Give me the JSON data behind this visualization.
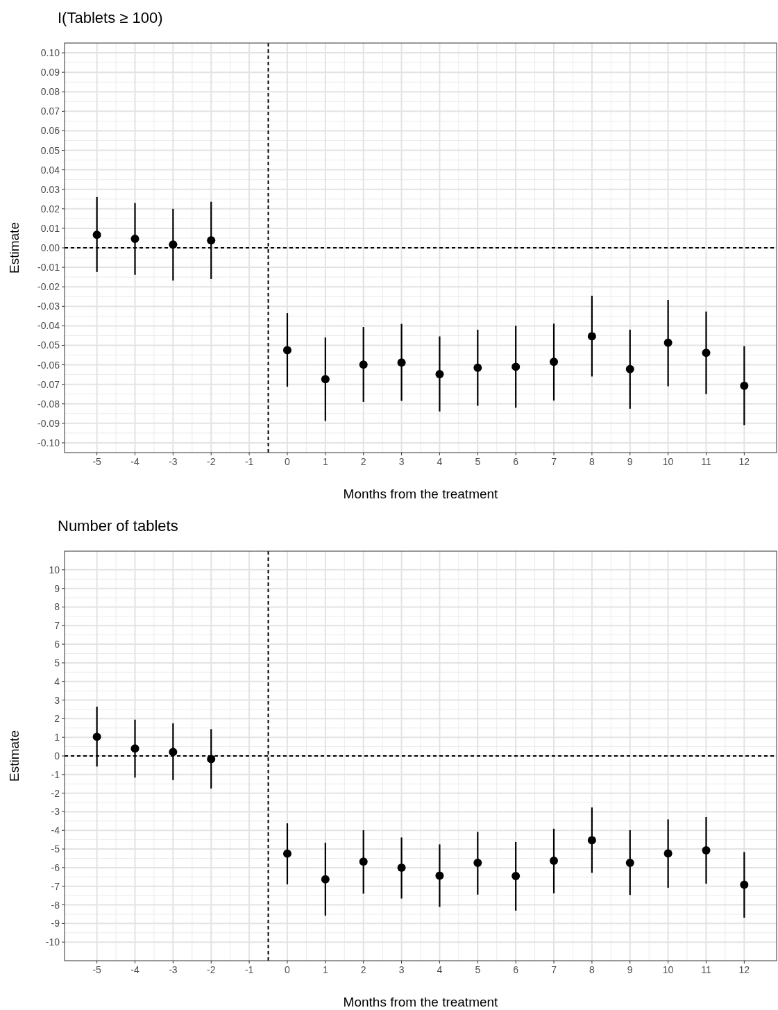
{
  "chart_data": [
    {
      "type": "scatter",
      "title": "I(Tablets ≥ 100)",
      "xlabel": "Months from the treatment",
      "ylabel": "Estimate",
      "x": [
        -5,
        -4,
        -3,
        -2,
        0,
        1,
        2,
        3,
        4,
        5,
        6,
        7,
        8,
        9,
        10,
        11,
        12
      ],
      "series": [
        {
          "color": "#000000",
          "values": [
            0.0067,
            0.0046,
            0.0017,
            0.0038,
            -0.0525,
            -0.0674,
            -0.0599,
            -0.0588,
            -0.0648,
            -0.0615,
            -0.061,
            -0.0585,
            -0.0454,
            -0.0622,
            -0.0487,
            -0.0538,
            -0.0707
          ],
          "errors": [
            [
              -0.0124,
              0.026
            ],
            [
              -0.0138,
              0.023
            ],
            [
              -0.0168,
              0.02
            ],
            [
              -0.016,
              0.0236
            ],
            [
              -0.0712,
              -0.0335
            ],
            [
              -0.0888,
              -0.046
            ],
            [
              -0.079,
              -0.0406
            ],
            [
              -0.0785,
              -0.039
            ],
            [
              -0.0839,
              -0.0454
            ],
            [
              -0.081,
              -0.042
            ],
            [
              -0.082,
              -0.04
            ],
            [
              -0.0783,
              -0.0389
            ],
            [
              -0.066,
              -0.0246
            ],
            [
              -0.0825,
              -0.042
            ],
            [
              -0.071,
              -0.0267
            ],
            [
              -0.075,
              -0.0327
            ],
            [
              -0.0909,
              -0.0504
            ]
          ]
        }
      ],
      "xlim": [
        -5.85,
        12.85
      ],
      "xticks": [
        -5,
        -4,
        -3,
        -2,
        -1,
        0,
        1,
        2,
        3,
        4,
        5,
        6,
        7,
        8,
        9,
        10,
        11,
        12
      ],
      "ylim": [
        -0.105,
        0.105
      ],
      "yticks": [
        {
          "value": -0.1,
          "label": "-0.10"
        },
        {
          "value": -0.09,
          "label": "-0.09"
        },
        {
          "value": -0.08,
          "label": "-0.08"
        },
        {
          "value": -0.07,
          "label": "-0.07"
        },
        {
          "value": -0.06,
          "label": "-0.06"
        },
        {
          "value": -0.05,
          "label": "-0.05"
        },
        {
          "value": -0.04,
          "label": "-0.04"
        },
        {
          "value": -0.03,
          "label": "-0.03"
        },
        {
          "value": -0.02,
          "label": "-0.02"
        },
        {
          "value": -0.01,
          "label": "-0.01"
        },
        {
          "value": 0,
          "label": "0.00"
        },
        {
          "value": 0.01,
          "label": "0.01"
        },
        {
          "value": 0.02,
          "label": "0.02"
        },
        {
          "value": 0.03,
          "label": "0.03"
        },
        {
          "value": 0.04,
          "label": "0.04"
        },
        {
          "value": 0.05,
          "label": "0.05"
        },
        {
          "value": 0.06,
          "label": "0.06"
        },
        {
          "value": 0.07,
          "label": "0.07"
        },
        {
          "value": 0.08,
          "label": "0.08"
        },
        {
          "value": 0.09,
          "label": "0.09"
        },
        {
          "value": 0.1,
          "label": "0.10"
        }
      ],
      "ref_lines": [
        {
          "axis": "x",
          "value": -0.5,
          "line_style": "dashed",
          "color": "#000000"
        },
        {
          "axis": "y",
          "value": 0,
          "line_style": "dashed",
          "color": "#000000"
        }
      ],
      "grid": true,
      "marker": "circle"
    },
    {
      "type": "scatter",
      "title": "Number of tablets",
      "xlabel": "Months from the treatment",
      "ylabel": "Estimate",
      "x": [
        -5,
        -4,
        -3,
        -2,
        0,
        1,
        2,
        3,
        4,
        5,
        6,
        7,
        8,
        9,
        10,
        11,
        12
      ],
      "series": [
        {
          "color": "#000000",
          "values": [
            1.03,
            0.4,
            0.21,
            -0.17,
            -5.25,
            -6.63,
            -5.68,
            -6.0,
            -6.43,
            -5.74,
            -6.45,
            -5.63,
            -4.53,
            -5.74,
            -5.24,
            -5.07,
            -6.92
          ],
          "errors": [
            [
              -0.57,
              2.65
            ],
            [
              -1.16,
              1.95
            ],
            [
              -1.3,
              1.75
            ],
            [
              -1.75,
              1.44
            ],
            [
              -6.9,
              -3.62
            ],
            [
              -8.58,
              -4.66
            ],
            [
              -7.4,
              -3.99
            ],
            [
              -7.66,
              -4.38
            ],
            [
              -8.11,
              -4.75
            ],
            [
              -7.45,
              -4.08
            ],
            [
              -8.31,
              -4.62
            ],
            [
              -7.38,
              -3.91
            ],
            [
              -6.28,
              -2.77
            ],
            [
              -7.47,
              -3.99
            ],
            [
              -7.08,
              -3.41
            ],
            [
              -6.86,
              -3.28
            ],
            [
              -8.69,
              -5.16
            ]
          ]
        }
      ],
      "xlim": [
        -5.85,
        12.85
      ],
      "xticks": [
        -5,
        -4,
        -3,
        -2,
        -1,
        0,
        1,
        2,
        3,
        4,
        5,
        6,
        7,
        8,
        9,
        10,
        11,
        12
      ],
      "ylim": [
        -11,
        11
      ],
      "yticks": [
        -10,
        -9,
        -8,
        -7,
        -6,
        -5,
        -4,
        -3,
        -2,
        -1,
        0,
        1,
        2,
        3,
        4,
        5,
        6,
        7,
        8,
        9,
        10
      ],
      "ref_lines": [
        {
          "axis": "x",
          "value": -0.5,
          "line_style": "dashed",
          "color": "#000000"
        },
        {
          "axis": "y",
          "value": 0,
          "line_style": "dashed",
          "color": "#000000"
        }
      ],
      "grid": true,
      "marker": "circle"
    }
  ]
}
